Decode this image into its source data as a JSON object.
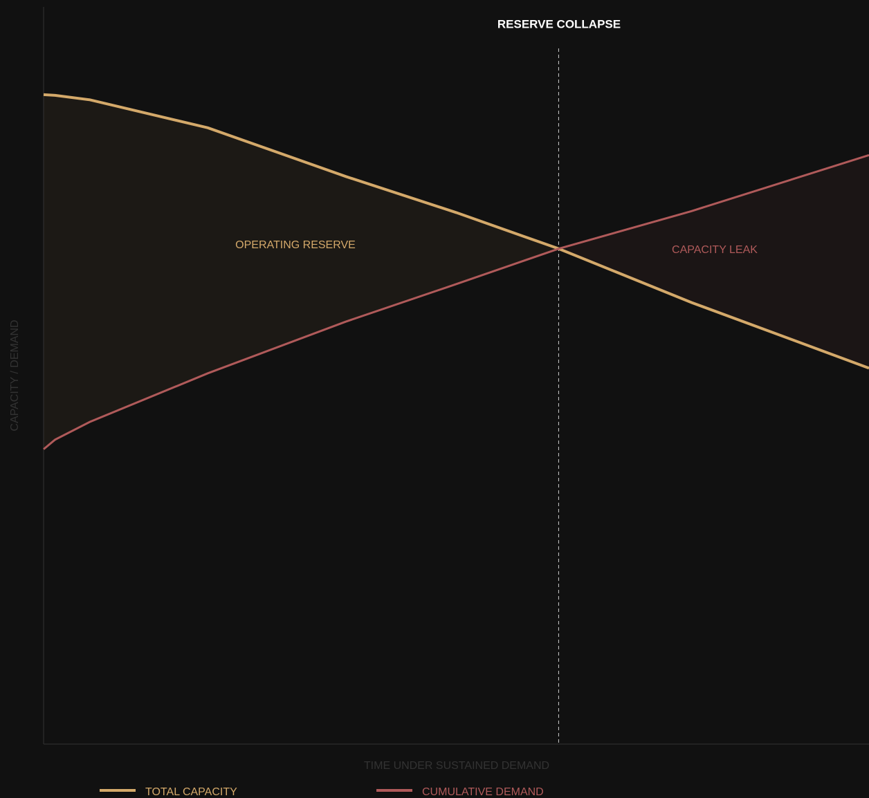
{
  "chart_data": {
    "type": "line",
    "title": "RESERVE COLLAPSE",
    "x_label": "TIME UNDER SUSTAINED DEMAND",
    "y_label": "CAPACITY  /  DEMAND",
    "x": [
      0,
      1.4,
      5.6,
      19.9,
      36.6,
      50,
      62.4,
      78.5,
      100
    ],
    "xlim": [
      0,
      100
    ],
    "ylim": [
      0,
      100
    ],
    "series": [
      {
        "name": "TOTAL CAPACITY",
        "color": "#d4a96a",
        "values": [
          88.1,
          88.0,
          87.4,
          83.6,
          77.0,
          72.1,
          67.2,
          59.9,
          51.0
        ]
      },
      {
        "name": "CUMULATIVE DEMAND",
        "color": "#b05a5a",
        "values": [
          40.0,
          41.3,
          43.7,
          50.3,
          57.3,
          62.4,
          67.2,
          72.3,
          79.9
        ]
      }
    ],
    "collapse_x": 62.4,
    "annotations": [
      "OPERATING RESERVE",
      "CAPACITY LEAK"
    ]
  }
}
